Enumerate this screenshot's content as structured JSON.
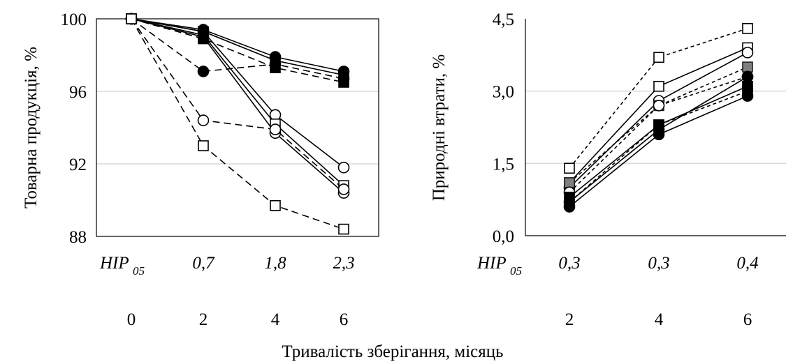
{
  "figure": {
    "xlabel": "Тривалість зберігання, місяць"
  },
  "chart_data": [
    {
      "type": "line",
      "ylabel": "Товарна продукція, %",
      "ylim": [
        88,
        100
      ],
      "yticks": [
        "100",
        "96",
        "92",
        "88"
      ],
      "ytick_values": [
        100,
        96,
        92,
        88
      ],
      "categories": [
        "0",
        "2",
        "4",
        "6"
      ],
      "hir_label_main": "НІР",
      "hir_label_sub": "05",
      "hir_values": [
        "0,7",
        "1,8",
        "2,3"
      ],
      "grid": true,
      "series": [
        {
          "marker": "circle-open",
          "dash": "solid",
          "values": [
            100,
            99.3,
            94.7,
            91.8
          ]
        },
        {
          "marker": "square-open",
          "dash": "solid",
          "values": [
            100,
            99.1,
            94.2,
            90.8
          ]
        },
        {
          "marker": "circle-open",
          "dash": "solid",
          "values": [
            100,
            99.0,
            93.7,
            90.4
          ]
        },
        {
          "marker": "circle-filled",
          "dash": "solid",
          "values": [
            100,
            99.4,
            97.9,
            97.1
          ]
        },
        {
          "marker": "square-filled",
          "dash": "solid",
          "values": [
            100,
            99.3,
            97.7,
            96.9
          ]
        },
        {
          "marker": "square-filled",
          "dash": "dash",
          "values": [
            100,
            98.9,
            97.3,
            96.5
          ]
        },
        {
          "marker": "circle-filled",
          "dash": "dash",
          "values": [
            100,
            97.1,
            97.5,
            96.7
          ]
        },
        {
          "marker": "circle-open",
          "dash": "dash",
          "values": [
            100,
            94.4,
            93.9,
            90.6
          ]
        },
        {
          "marker": "square-open",
          "dash": "dash",
          "values": [
            100,
            93.0,
            89.7,
            88.4
          ]
        }
      ]
    },
    {
      "type": "line",
      "ylabel": "Природні втрати, %",
      "ylim": [
        0,
        4.5
      ],
      "yticks": [
        "4,5",
        "3,0",
        "1,5",
        "0,0"
      ],
      "ytick_values": [
        4.5,
        3.0,
        1.5,
        0.0
      ],
      "categories": [
        "2",
        "4",
        "6"
      ],
      "hir_label_main": "НІР",
      "hir_label_sub": "05",
      "hir_values": [
        "0,3",
        "0,3",
        "0,4"
      ],
      "grid": true,
      "series": [
        {
          "marker": "square-open",
          "dash": "dot",
          "values": [
            1.4,
            3.7,
            4.3
          ]
        },
        {
          "marker": "square-open",
          "dash": "solid",
          "values": [
            1.1,
            3.1,
            3.9
          ]
        },
        {
          "marker": "circle-open",
          "dash": "solid",
          "values": [
            1.0,
            2.8,
            3.8
          ]
        },
        {
          "marker": "square-gray",
          "dash": "dot",
          "values": [
            1.1,
            2.7,
            3.5
          ]
        },
        {
          "marker": "circle-open",
          "dash": "dot",
          "values": [
            0.9,
            2.7,
            3.3
          ]
        },
        {
          "marker": "square-filled",
          "dash": "solid",
          "values": [
            0.8,
            2.3,
            3.1
          ]
        },
        {
          "marker": "circle-filled",
          "dash": "solid",
          "values": [
            0.7,
            2.2,
            3.3
          ]
        },
        {
          "marker": "square-filled",
          "dash": "dot",
          "values": [
            0.7,
            2.3,
            3.0
          ]
        },
        {
          "marker": "circle-filled",
          "dash": "solid",
          "values": [
            0.6,
            2.1,
            2.9
          ]
        }
      ]
    }
  ]
}
